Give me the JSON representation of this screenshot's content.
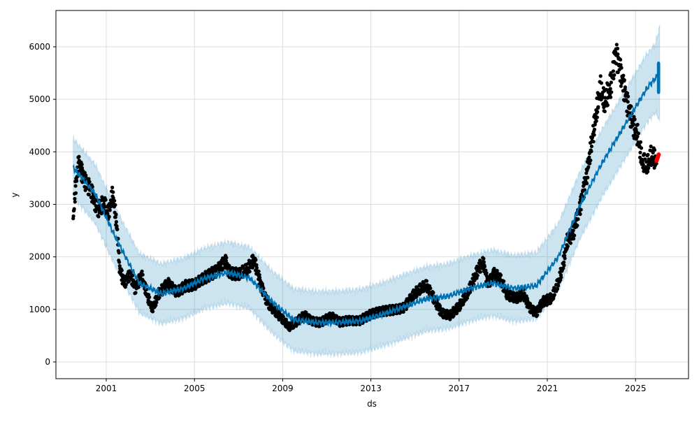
{
  "chart_data": {
    "type": "line",
    "title": "",
    "xlabel": "ds",
    "ylabel": "y",
    "xlim": [
      1999.5,
      2026.2
    ],
    "ylim": [
      -320,
      6650
    ],
    "grid": true,
    "x_ticks": [
      2001,
      2005,
      2009,
      2013,
      2017,
      2021,
      2025
    ],
    "x_tick_labels": [
      "2001",
      "2005",
      "2009",
      "2013",
      "2017",
      "2021",
      "2025"
    ],
    "y_ticks": [
      0,
      1000,
      2000,
      3000,
      4000,
      5000,
      6000
    ],
    "y_tick_labels": [
      "0",
      "1000",
      "2000",
      "3000",
      "4000",
      "5000",
      "6000"
    ],
    "colors": {
      "observed": "#000000",
      "forecast": "#0072B2",
      "band": "#0072B2",
      "actual_future": "#ff0000"
    },
    "observed": [
      [
        1999.5,
        2700
      ],
      [
        1999.6,
        3300
      ],
      [
        1999.75,
        3800
      ],
      [
        2000,
        3500
      ],
      [
        2000.3,
        3300
      ],
      [
        2000.6,
        2900
      ],
      [
        2000.9,
        3000
      ],
      [
        2001.1,
        2800
      ],
      [
        2001.3,
        3200
      ],
      [
        2001.5,
        2500
      ],
      [
        2001.6,
        1800
      ],
      [
        2001.8,
        1500
      ],
      [
        2002.1,
        1700
      ],
      [
        2002.3,
        1400
      ],
      [
        2002.6,
        1650
      ],
      [
        2002.9,
        1200
      ],
      [
        2003.1,
        1000
      ],
      [
        2003.4,
        1300
      ],
      [
        2003.8,
        1500
      ],
      [
        2004.2,
        1350
      ],
      [
        2004.6,
        1450
      ],
      [
        2005,
        1450
      ],
      [
        2005.5,
        1600
      ],
      [
        2006,
        1750
      ],
      [
        2006.4,
        1950
      ],
      [
        2006.6,
        1700
      ],
      [
        2007,
        1650
      ],
      [
        2007.4,
        1750
      ],
      [
        2007.7,
        1950
      ],
      [
        2008,
        1500
      ],
      [
        2008.3,
        1150
      ],
      [
        2008.6,
        1000
      ],
      [
        2009,
        800
      ],
      [
        2009.3,
        650
      ],
      [
        2009.6,
        750
      ],
      [
        2010,
        900
      ],
      [
        2010.3,
        800
      ],
      [
        2010.7,
        750
      ],
      [
        2011.2,
        850
      ],
      [
        2011.6,
        750
      ],
      [
        2012,
        800
      ],
      [
        2012.5,
        800
      ],
      [
        2013,
        900
      ],
      [
        2013.5,
        950
      ],
      [
        2014,
        1000
      ],
      [
        2014.5,
        1050
      ],
      [
        2015,
        1300
      ],
      [
        2015.5,
        1450
      ],
      [
        2015.8,
        1250
      ],
      [
        2016.2,
        950
      ],
      [
        2016.6,
        900
      ],
      [
        2017,
        1050
      ],
      [
        2017.4,
        1300
      ],
      [
        2017.9,
        1800
      ],
      [
        2018.1,
        1900
      ],
      [
        2018.3,
        1500
      ],
      [
        2018.6,
        1700
      ],
      [
        2018.9,
        1550
      ],
      [
        2019.2,
        1250
      ],
      [
        2019.6,
        1200
      ],
      [
        2019.9,
        1300
      ],
      [
        2020.2,
        1050
      ],
      [
        2020.5,
        950
      ],
      [
        2020.8,
        1150
      ],
      [
        2021.2,
        1200
      ],
      [
        2021.5,
        1500
      ],
      [
        2021.7,
        1800
      ],
      [
        2021.9,
        2300
      ],
      [
        2022.2,
        2500
      ],
      [
        2022.5,
        3000
      ],
      [
        2022.8,
        3600
      ],
      [
        2023.1,
        4400
      ],
      [
        2023.4,
        5200
      ],
      [
        2023.6,
        4900
      ],
      [
        2023.9,
        5300
      ],
      [
        2024.1,
        5900
      ],
      [
        2024.3,
        5600
      ],
      [
        2024.6,
        5000
      ],
      [
        2024.9,
        4500
      ],
      [
        2025.1,
        4300
      ],
      [
        2025.3,
        3800
      ],
      [
        2025.5,
        3700
      ],
      [
        2025.7,
        3900
      ],
      [
        2025.95,
        3850
      ]
    ],
    "yhat": [
      [
        1999.5,
        3700
      ],
      [
        2000.5,
        3200
      ],
      [
        2001.5,
        2300
      ],
      [
        2002.5,
        1500
      ],
      [
        2003.5,
        1300
      ],
      [
        2004.5,
        1400
      ],
      [
        2005.5,
        1600
      ],
      [
        2006.5,
        1700
      ],
      [
        2007.5,
        1600
      ],
      [
        2008.5,
        1150
      ],
      [
        2009.5,
        800
      ],
      [
        2010.5,
        750
      ],
      [
        2011.5,
        750
      ],
      [
        2012.5,
        780
      ],
      [
        2013.5,
        900
      ],
      [
        2014.5,
        1050
      ],
      [
        2015.5,
        1200
      ],
      [
        2016.5,
        1250
      ],
      [
        2017.5,
        1400
      ],
      [
        2018.5,
        1500
      ],
      [
        2019.5,
        1400
      ],
      [
        2020.5,
        1450
      ],
      [
        2021.5,
        2000
      ],
      [
        2022.5,
        3000
      ],
      [
        2023.5,
        3800
      ],
      [
        2024.5,
        4500
      ],
      [
        2025.5,
        5200
      ],
      [
        2026.1,
        5500
      ]
    ],
    "interval_halfwidth": [
      [
        1999.5,
        550
      ],
      [
        2025.9,
        650
      ],
      [
        2026.1,
        900
      ]
    ],
    "forecast_range": {
      "x": [
        2025.97,
        2026.12
      ],
      "low": 5100,
      "high": 5720
    },
    "actual_future": {
      "x": [
        2025.95,
        2026.05
      ],
      "low": 3830,
      "high": 3950
    }
  }
}
